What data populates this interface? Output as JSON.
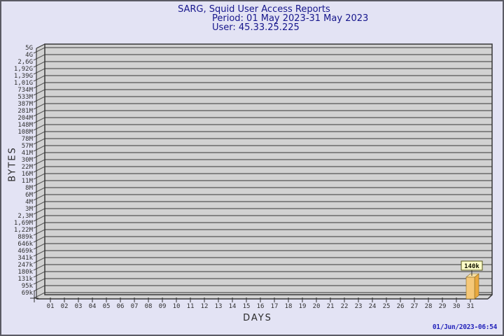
{
  "header": {
    "title": "SARG, Squid User Access Reports",
    "period": "Period: 01 May 2023-31 May 2023",
    "user": "User: 45.33.25.225"
  },
  "footer": {
    "timestamp": "01/Jun/2023-06:54"
  },
  "chart_data": {
    "type": "bar",
    "style": "3d-bar",
    "title": "SARG, Squid User Access Reports",
    "period": "Period: 01 May 2023-31 May 2023",
    "user": "User: 45.33.25.225",
    "xlabel": "DAYS",
    "ylabel": "BYTES",
    "y_scale": "log",
    "grid": true,
    "legend": false,
    "y_tick_labels": [
      "5G",
      "4G",
      "2,6G",
      "1,92G",
      "1,39G",
      "1,01G",
      "734M",
      "533M",
      "387M",
      "281M",
      "204M",
      "148M",
      "108M",
      "78M",
      "57M",
      "41M",
      "30M",
      "22M",
      "16M",
      "11M",
      "8M",
      "6M",
      "4M",
      "3M",
      "2,3M",
      "1,69M",
      "1,22M",
      "889k",
      "646k",
      "469k",
      "341k",
      "247k",
      "180k",
      "131k",
      "95k",
      "69k"
    ],
    "categories": [
      "01",
      "02",
      "03",
      "04",
      "05",
      "06",
      "07",
      "08",
      "09",
      "10",
      "11",
      "12",
      "13",
      "14",
      "15",
      "16",
      "17",
      "18",
      "19",
      "20",
      "21",
      "22",
      "23",
      "24",
      "25",
      "26",
      "27",
      "28",
      "29",
      "30",
      "31"
    ],
    "values": [
      0,
      0,
      0,
      0,
      0,
      0,
      0,
      0,
      0,
      0,
      0,
      0,
      0,
      0,
      0,
      0,
      0,
      0,
      0,
      0,
      0,
      0,
      0,
      0,
      0,
      0,
      0,
      0,
      0,
      0,
      140000
    ],
    "annotations": [
      {
        "category": "31",
        "label": "140k",
        "value": 140000
      }
    ]
  },
  "colors": {
    "background": "#E3E3F4",
    "title_text": "#16168C",
    "timestamp_text": "#2525BB",
    "axis_text": "#2A2A2A",
    "tick_text": "#303030",
    "grid_fill": "#D2D2D2",
    "grid_line": "#565656",
    "grid_border": "#383838",
    "bar_front": "#F5C878",
    "bar_side": "#E8A83E",
    "bar_top": "#F8DFA2",
    "bar_outline": "#8A6A20",
    "value_box_fill": "#FFFFC8",
    "value_box_border": "#55551A",
    "connector": "#303030"
  }
}
